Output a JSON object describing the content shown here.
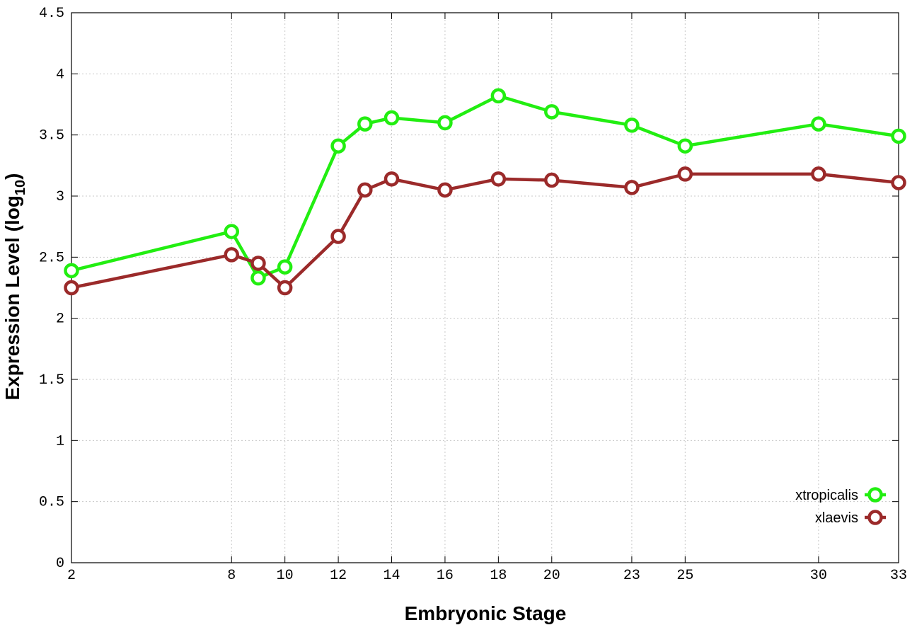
{
  "chart_data": {
    "type": "line",
    "xlabel": "Embryonic Stage",
    "ylabel_main": "Expression Level (log",
    "ylabel_sub": "10",
    "ylabel_close": ")",
    "ylim": [
      0,
      4.5
    ],
    "y_ticks": [
      "0",
      "0.5",
      "1",
      "1.5",
      "2",
      "2.5",
      "3",
      "3.5",
      "4",
      "4.5"
    ],
    "x": [
      2,
      8,
      9,
      10,
      12,
      13,
      14,
      16,
      18,
      20,
      23,
      25,
      30,
      33
    ],
    "x_tick_labels": [
      "2",
      "8",
      "10",
      "12",
      "14",
      "16",
      "18",
      "20",
      "23",
      "25",
      "30",
      "33"
    ],
    "x_ticks_at": [
      2,
      8,
      10,
      12,
      14,
      16,
      18,
      20,
      23,
      25,
      30,
      33
    ],
    "grid": true,
    "legend_position": "bottom-right",
    "series": [
      {
        "name": "xtropicalis",
        "color": "#22ee11",
        "values": [
          2.39,
          2.71,
          2.33,
          2.42,
          3.41,
          3.59,
          3.64,
          3.6,
          3.82,
          3.69,
          3.58,
          3.41,
          3.59,
          3.49
        ]
      },
      {
        "name": "xlaevis",
        "color": "#9b2a2a",
        "values": [
          2.25,
          2.52,
          2.45,
          2.25,
          2.67,
          3.05,
          3.14,
          3.05,
          3.14,
          3.13,
          3.07,
          3.18,
          3.18,
          3.11
        ]
      }
    ]
  }
}
